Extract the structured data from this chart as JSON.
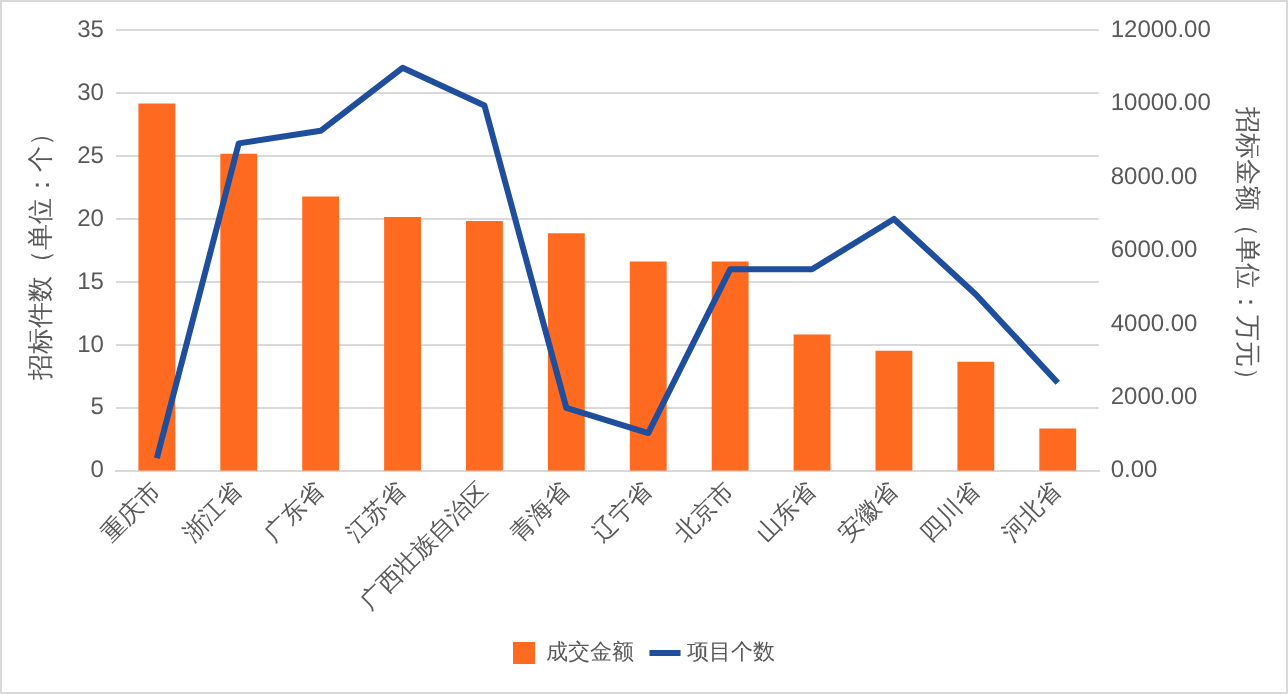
{
  "chart_data": {
    "type": "bar",
    "ylabel": "招标件数（单位：个）",
    "y2label": "招标金额（单位：万元）",
    "categories": [
      "重庆市",
      "浙江省",
      "广东省",
      "江苏省",
      "广西壮族自治区",
      "青海省",
      "辽宁省",
      "北京市",
      "山东省",
      "安徽省",
      "四川省",
      "河北省"
    ],
    "series": [
      {
        "name": "成交金额",
        "axis": "y2",
        "color": "#ff6a21",
        "values": [
          10000,
          8630,
          7470,
          6910,
          6800,
          6470,
          5700,
          5700,
          3710,
          3270,
          2970,
          1150
        ]
      },
      {
        "name": "项目个数",
        "type": "line",
        "axis": "y",
        "color": "#1f4e9c",
        "values": [
          1,
          26,
          27,
          32,
          29,
          5,
          3,
          16,
          16,
          20,
          14,
          7
        ]
      }
    ],
    "ylim": [
      0,
      35
    ],
    "yticks": [
      0,
      5,
      10,
      15,
      20,
      25,
      30,
      35
    ],
    "y2lim": [
      0,
      12000
    ],
    "y2ticks": [
      {
        "value": 0,
        "label": "0.00"
      },
      {
        "value": 2000,
        "label": "2000.00"
      },
      {
        "value": 4000,
        "label": "4000.00"
      },
      {
        "value": 6000,
        "label": "6000.00"
      },
      {
        "value": 8000,
        "label": "8000.00"
      },
      {
        "value": 10000,
        "label": "10000.00"
      },
      {
        "value": 12000,
        "label": "12000.00"
      }
    ],
    "grid": "y",
    "legend": "bottom",
    "marker": "none"
  }
}
